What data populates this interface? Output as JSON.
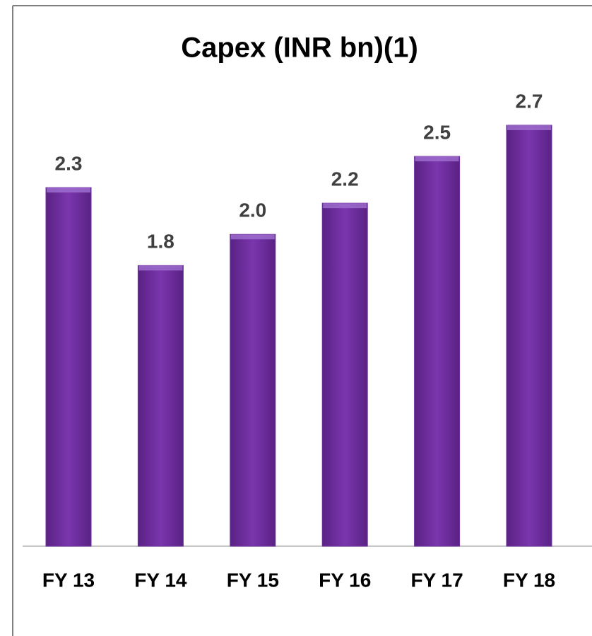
{
  "chart_data": {
    "type": "bar",
    "title": "Capex (INR bn)(1)",
    "categories": [
      "FY 13",
      "FY 14",
      "FY 15",
      "FY 16",
      "FY 17",
      "FY 18"
    ],
    "values": [
      2.3,
      1.8,
      2.0,
      2.2,
      2.5,
      2.7
    ],
    "value_labels": [
      "2.3",
      "1.8",
      "2.0",
      "2.2",
      "2.5",
      "2.7"
    ],
    "color": "#7030a0"
  }
}
